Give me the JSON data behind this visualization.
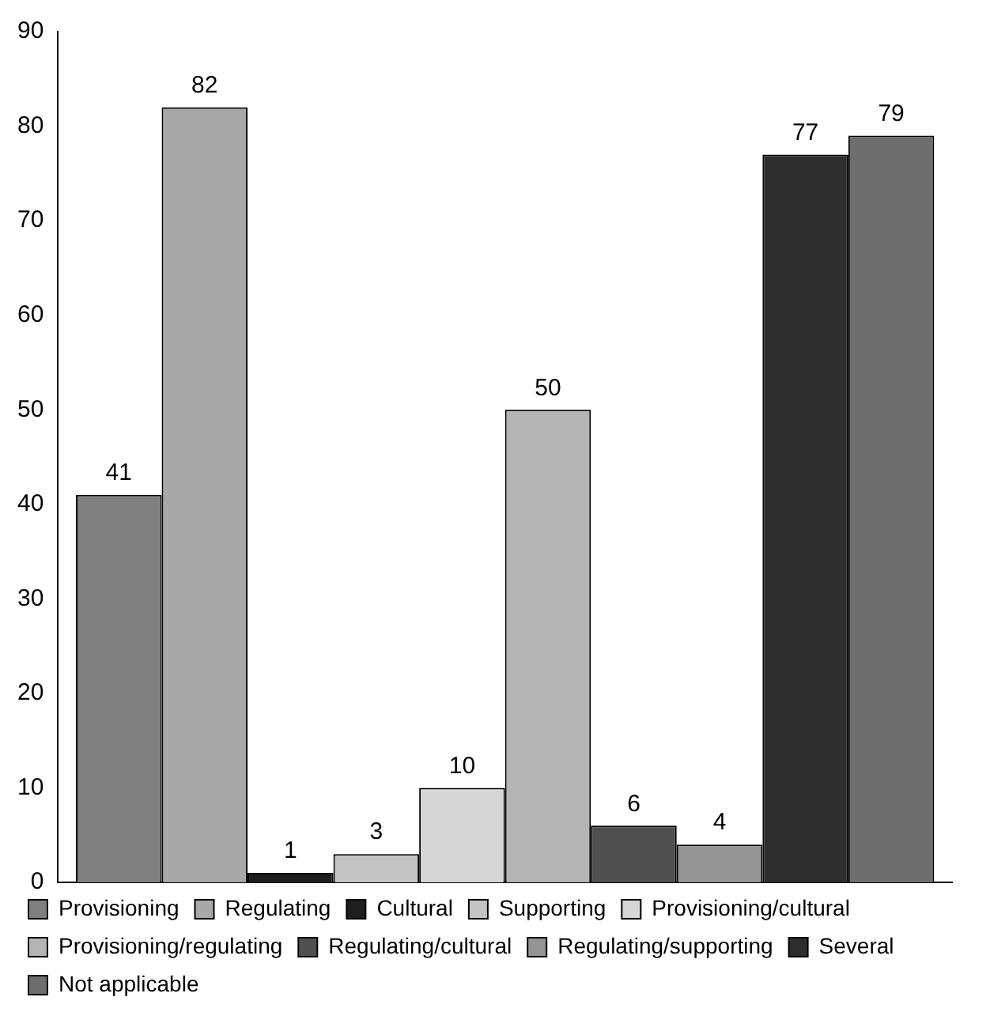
{
  "chart_data": {
    "type": "bar",
    "categories": [
      null
    ],
    "series": [
      {
        "name": "Provisioning",
        "color": "#808080",
        "values": [
          41
        ]
      },
      {
        "name": "Regulating",
        "color": "#a8a8a8",
        "values": [
          82
        ]
      },
      {
        "name": "Cultural",
        "color": "#1e1e1e",
        "values": [
          1
        ]
      },
      {
        "name": "Supporting",
        "color": "#c4c4c4",
        "values": [
          3
        ]
      },
      {
        "name": "Provisioning/cultural",
        "color": "#d6d6d6",
        "values": [
          10
        ]
      },
      {
        "name": "Provisioning/regulating",
        "color": "#b4b4b4",
        "values": [
          50
        ]
      },
      {
        "name": "Regulating/cultural",
        "color": "#505050",
        "values": [
          6
        ]
      },
      {
        "name": "Regulating/supporting",
        "color": "#949494",
        "values": [
          4
        ]
      },
      {
        "name": "Several",
        "color": "#2e2e2e",
        "values": [
          77
        ]
      },
      {
        "name": "Not applicable",
        "color": "#6e6e6e",
        "values": [
          79
        ]
      }
    ],
    "ylim": [
      0,
      90
    ],
    "yticks": [
      0,
      10,
      20,
      30,
      40,
      50,
      60,
      70,
      80,
      90
    ],
    "grid": false,
    "legend": "bottom",
    "data_labels": true
  }
}
